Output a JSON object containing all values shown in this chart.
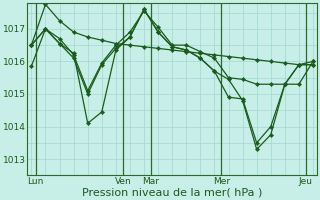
{
  "background_color": "#c8eee8",
  "grid_color": "#a0d8d0",
  "line_color": "#1a5c1a",
  "marker_color": "#1a5c1a",
  "xlabel": "Pression niveau de la mer( hPa )",
  "xlabel_fontsize": 8,
  "yticks": [
    1013,
    1014,
    1015,
    1016,
    1017
  ],
  "ylim": [
    1012.5,
    1017.8
  ],
  "xlim": [
    -0.3,
    20.3
  ],
  "day_labels": [
    "Lun",
    "Ven",
    "Mar",
    "Mer",
    "Jeu"
  ],
  "day_positions": [
    0.3,
    6.5,
    8.5,
    13.5,
    19.5
  ],
  "vline_positions": [
    0.3,
    6.5,
    8.5,
    13.5,
    19.5
  ],
  "n_points": 21,
  "series1": [
    1016.5,
    1017.75,
    1017.25,
    1016.9,
    1016.75,
    1016.65,
    1016.55,
    1016.5,
    1016.45,
    1016.4,
    1016.35,
    1016.3,
    1016.25,
    1016.2,
    1016.15,
    1016.1,
    1016.05,
    1016.0,
    1015.95,
    1015.9,
    1016.0
  ],
  "series2": [
    1015.85,
    1017.0,
    1016.7,
    1016.2,
    1015.1,
    1015.95,
    1016.5,
    1016.9,
    1017.55,
    1017.05,
    1016.5,
    1016.5,
    1016.3,
    1016.1,
    1015.5,
    1015.45,
    1015.3,
    1015.3,
    1015.3,
    1015.3,
    1016.0
  ],
  "series3": [
    1016.5,
    1017.0,
    1016.55,
    1016.25,
    1014.1,
    1014.45,
    1016.35,
    1016.75,
    1017.6,
    1016.9,
    1016.45,
    1016.35,
    1016.1,
    1015.7,
    1015.45,
    1014.8,
    1013.3,
    1013.75,
    1015.3,
    1015.9,
    1015.9
  ],
  "series4": [
    1016.5,
    1017.0,
    1016.55,
    1016.1,
    1015.0,
    1015.9,
    1016.4,
    1016.75,
    1017.6,
    1016.9,
    1016.45,
    1016.35,
    1016.1,
    1015.7,
    1014.9,
    1014.85,
    1013.5,
    1014.0,
    1015.3,
    1015.9,
    1015.9
  ]
}
